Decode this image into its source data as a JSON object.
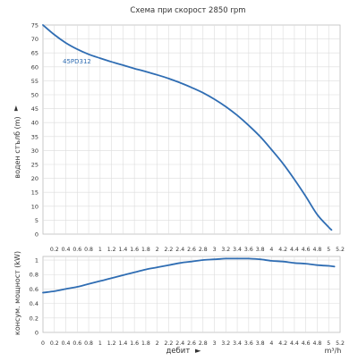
{
  "chart_data": [
    {
      "type": "line",
      "title": "Схема при скорост 2850 rpm",
      "ylabel": "воден стълб (m)",
      "xlabel": "",
      "xlim": [
        0,
        5.2
      ],
      "ylim": [
        0,
        75
      ],
      "x_ticks": [
        "0.2",
        "0.4",
        "0.6",
        "0.8",
        "1",
        "1.2",
        "1.4",
        "1.6",
        "1.8",
        "2",
        "2.2",
        "2.4",
        "2.6",
        "2.8",
        "3",
        "3.2",
        "3.4",
        "3.6",
        "3.8",
        "4",
        "4.2",
        "4.4",
        "4.6",
        "4.8",
        "5",
        "5.2"
      ],
      "y_ticks": [
        "0",
        "5",
        "10",
        "15",
        "20",
        "25",
        "30",
        "35",
        "40",
        "45",
        "50",
        "55",
        "60",
        "65",
        "70",
        "75"
      ],
      "grid": true,
      "series": [
        {
          "name": "45PD312",
          "color": "#2f6db3",
          "x": [
            0,
            0.2,
            0.4,
            0.6,
            0.8,
            1.0,
            1.2,
            1.4,
            1.6,
            1.8,
            2.0,
            2.2,
            2.4,
            2.6,
            2.8,
            3.0,
            3.2,
            3.4,
            3.6,
            3.8,
            4.0,
            4.2,
            4.4,
            4.6,
            4.8,
            5.0,
            5.05
          ],
          "y": [
            75,
            71.5,
            68.6,
            66.3,
            64.5,
            63.1,
            61.8,
            60.6,
            59.4,
            58.3,
            57.1,
            55.8,
            54.3,
            52.6,
            50.7,
            48.4,
            45.7,
            42.6,
            39.0,
            35.0,
            30.3,
            25.3,
            19.6,
            13.5,
            7.0,
            2.5,
            1.5
          ]
        }
      ]
    },
    {
      "type": "line",
      "title": "",
      "ylabel": "консум. мощност (kW)",
      "xlabel": "дебит",
      "x_unit": "m³/h",
      "xlim": [
        0,
        5.2
      ],
      "ylim": [
        0,
        1.05
      ],
      "x_ticks": [
        "0",
        "0.2",
        "0.4",
        "0.6",
        "0.8",
        "1",
        "1.2",
        "1.4",
        "1.6",
        "1.8",
        "2",
        "2.2",
        "2.4",
        "2.6",
        "2.8",
        "3",
        "3.2",
        "3.4",
        "3.6",
        "3.8",
        "4",
        "4.2",
        "4.4",
        "4.6",
        "4.8",
        "5",
        "5.2"
      ],
      "y_ticks": [
        "0",
        "0.2",
        "0.4",
        "0.6",
        "0.8",
        "1"
      ],
      "grid": true,
      "series": [
        {
          "color": "#2f6db3",
          "x": [
            0,
            0.2,
            0.4,
            0.6,
            0.8,
            1.0,
            1.2,
            1.4,
            1.6,
            1.8,
            2.0,
            2.2,
            2.4,
            2.6,
            2.8,
            3.0,
            3.2,
            3.4,
            3.6,
            3.8,
            4.0,
            4.2,
            4.4,
            4.6,
            4.8,
            5.0,
            5.1
          ],
          "y": [
            0.55,
            0.57,
            0.6,
            0.63,
            0.67,
            0.71,
            0.75,
            0.79,
            0.83,
            0.87,
            0.9,
            0.93,
            0.96,
            0.98,
            1.0,
            1.01,
            1.02,
            1.02,
            1.02,
            1.01,
            0.99,
            0.98,
            0.96,
            0.95,
            0.93,
            0.92,
            0.91
          ]
        }
      ]
    }
  ],
  "arrows": {
    "glyph": "▲",
    "xglyph": "►"
  }
}
